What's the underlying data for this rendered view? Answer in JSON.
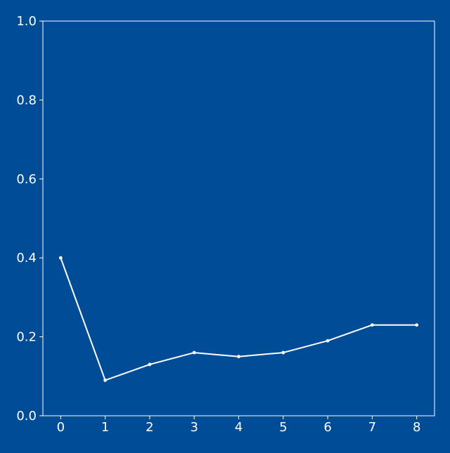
{
  "chart_data": {
    "type": "line",
    "title": "",
    "xlabel": "",
    "ylabel": "",
    "x": [
      0,
      1,
      2,
      3,
      4,
      5,
      6,
      7,
      8
    ],
    "series": [
      {
        "values": [
          0.4,
          0.09,
          0.13,
          0.16,
          0.15,
          0.16,
          0.19,
          0.23,
          0.23
        ]
      }
    ],
    "xlim": [
      -0.4,
      8.4
    ],
    "ylim": [
      0.0,
      1.0
    ],
    "x_ticks": [
      "0",
      "1",
      "2",
      "3",
      "4",
      "5",
      "6",
      "7",
      "8"
    ],
    "y_ticks": [
      "0.0",
      "0.2",
      "0.4",
      "0.6",
      "0.8",
      "1.0"
    ],
    "grid": false,
    "legend": "none",
    "colors": {
      "background": "#004c97",
      "line": "#ffffff",
      "axes": "#ffffff",
      "text": "#ffffff"
    }
  }
}
